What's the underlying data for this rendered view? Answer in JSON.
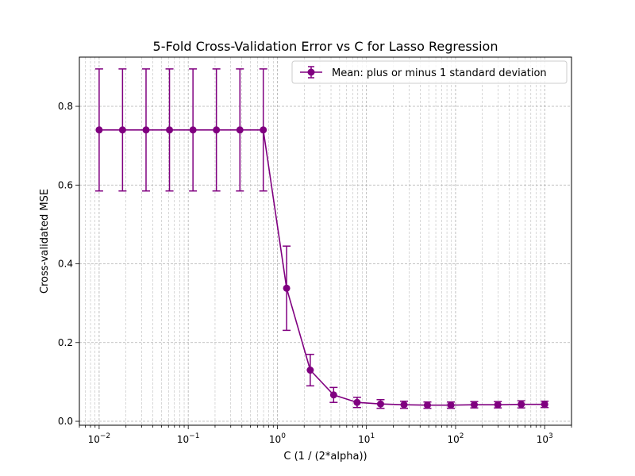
{
  "chart_data": {
    "type": "line",
    "title": "5-Fold Cross-Validation Error vs C for Lasso Regression",
    "xlabel": "C (1 / (2*alpha))",
    "ylabel": "Cross-validated MSE",
    "xscale": "log",
    "xlim": [
      0.006,
      2000
    ],
    "ylim": [
      -0.01,
      0.925
    ],
    "xticks": [
      {
        "value": 0.01,
        "base": "10",
        "exp": "−2"
      },
      {
        "value": 0.1,
        "base": "10",
        "exp": "−1"
      },
      {
        "value": 1,
        "base": "10",
        "exp": "0"
      },
      {
        "value": 10,
        "base": "10",
        "exp": "1"
      },
      {
        "value": 100,
        "base": "10",
        "exp": "2"
      },
      {
        "value": 1000,
        "base": "10",
        "exp": "3"
      }
    ],
    "yticks": [
      {
        "value": 0.0,
        "label": "0.0"
      },
      {
        "value": 0.2,
        "label": "0.2"
      },
      {
        "value": 0.4,
        "label": "0.4"
      },
      {
        "value": 0.6,
        "label": "0.6"
      },
      {
        "value": 0.8,
        "label": "0.8"
      }
    ],
    "grid": true,
    "legend_position": "top-right",
    "series": [
      {
        "name": "Mean: plus or minus 1 standard deviation",
        "color": "#800080",
        "x": [
          0.01,
          0.0183,
          0.0336,
          0.0616,
          0.113,
          0.207,
          0.38,
          0.695,
          1.27,
          2.34,
          4.28,
          7.85,
          14.4,
          26.4,
          48.3,
          88.6,
          162,
          298,
          546,
          1000
        ],
        "y": [
          0.74,
          0.74,
          0.74,
          0.74,
          0.74,
          0.74,
          0.74,
          0.74,
          0.338,
          0.13,
          0.067,
          0.048,
          0.044,
          0.042,
          0.041,
          0.041,
          0.042,
          0.042,
          0.043,
          0.043
        ],
        "err": [
          0.155,
          0.155,
          0.155,
          0.155,
          0.155,
          0.155,
          0.155,
          0.155,
          0.107,
          0.04,
          0.019,
          0.013,
          0.011,
          0.009,
          0.008,
          0.008,
          0.008,
          0.008,
          0.009,
          0.008
        ]
      }
    ]
  }
}
